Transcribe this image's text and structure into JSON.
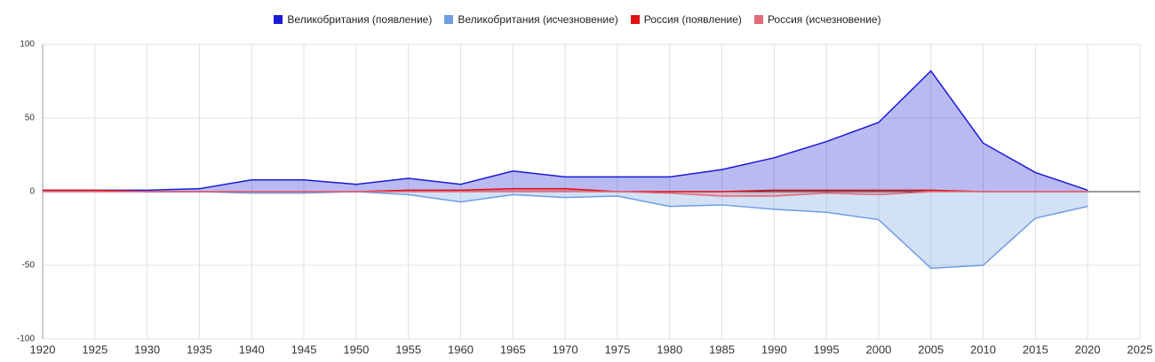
{
  "chart_data": {
    "type": "area",
    "x": [
      1920,
      1925,
      1930,
      1935,
      1940,
      1945,
      1950,
      1955,
      1960,
      1965,
      1970,
      1975,
      1980,
      1985,
      1990,
      1995,
      2000,
      2005,
      2010,
      2015,
      2020
    ],
    "series": [
      {
        "name": "Великобритания (появление)",
        "color": "#1a1ad6",
        "values": [
          1,
          1,
          1,
          2,
          8,
          8,
          5,
          9,
          5,
          14,
          10,
          10,
          10,
          15,
          23,
          34,
          47,
          82,
          33,
          13,
          1
        ]
      },
      {
        "name": "Великобритания (исчезновение)",
        "color": "#6e9de3",
        "values": [
          0,
          0,
          0,
          0,
          -1,
          -1,
          0,
          -2,
          -7,
          -2,
          -4,
          -3,
          -10,
          -9,
          -12,
          -14,
          -19,
          -52,
          -50,
          -18,
          -10
        ]
      },
      {
        "name": "Россия (появление)",
        "color": "#e01010",
        "values": [
          1,
          1,
          0,
          0,
          0,
          0,
          0,
          1,
          1,
          2,
          2,
          0,
          0,
          0,
          1,
          1,
          1,
          1,
          0,
          0,
          0
        ]
      },
      {
        "name": "Россия (исчезновение)",
        "color": "#e06a78",
        "values": [
          0,
          0,
          0,
          0,
          0,
          0,
          0,
          0,
          0,
          0,
          0,
          0,
          -1,
          -3,
          -3,
          -1,
          -2,
          0,
          0,
          0,
          0
        ]
      }
    ],
    "xlim": [
      1920,
      2025
    ],
    "xticks": [
      1920,
      1925,
      1930,
      1935,
      1940,
      1945,
      1950,
      1955,
      1960,
      1965,
      1970,
      1975,
      1980,
      1985,
      1990,
      1995,
      2000,
      2005,
      2010,
      2015,
      2020,
      2025
    ],
    "ylim": [
      -100,
      100
    ],
    "yticks": [
      -100,
      -50,
      0,
      50,
      100
    ],
    "grid": true,
    "legend": "top"
  }
}
